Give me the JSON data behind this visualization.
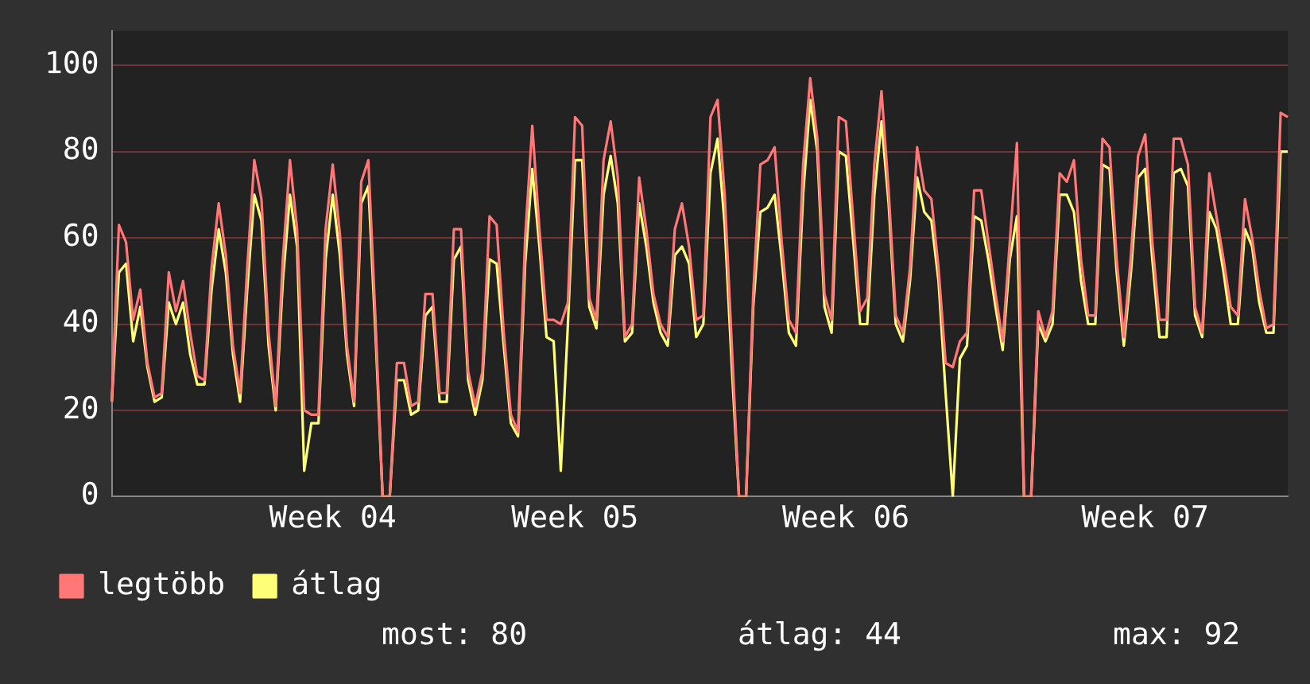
{
  "chart_data": {
    "type": "line",
    "categories": [
      null,
      null,
      null,
      null,
      null,
      null,
      null,
      null,
      null,
      null,
      null,
      null,
      null,
      null,
      null,
      null,
      null,
      null,
      null,
      null,
      null,
      null,
      null,
      null,
      null,
      null,
      null,
      null,
      null,
      null,
      null,
      "Week 04",
      null,
      null,
      null,
      null,
      null,
      null,
      null,
      null,
      null,
      null,
      null,
      null,
      null,
      null,
      null,
      null,
      null,
      null,
      null,
      null,
      null,
      null,
      null,
      null,
      null,
      null,
      null,
      null,
      null,
      null,
      null,
      null,
      null,
      "Week 05",
      null,
      null,
      null,
      null,
      null,
      null,
      null,
      null,
      null,
      null,
      null,
      null,
      null,
      null,
      null,
      null,
      null,
      null,
      null,
      null,
      null,
      null,
      null,
      null,
      null,
      null,
      null,
      null,
      null,
      null,
      null,
      null,
      null,
      null,
      null,
      null,
      null,
      "Week 06",
      null,
      null,
      null,
      null,
      null,
      null,
      null,
      null,
      null,
      null,
      null,
      null,
      null,
      null,
      null,
      null,
      null,
      null,
      null,
      null,
      null,
      null,
      null,
      null,
      null,
      null,
      null,
      null,
      null,
      null,
      null,
      null,
      null,
      null,
      null,
      null,
      null,
      null,
      null,
      null,
      null,
      "Week 07",
      null,
      null,
      null,
      null,
      null,
      null,
      null,
      null,
      null,
      null,
      null,
      null,
      null,
      null,
      null,
      null,
      null,
      null,
      null,
      null
    ],
    "series": [
      {
        "name": "legtöbb",
        "color": "#ff7777",
        "values": [
          22,
          63,
          59,
          41,
          48,
          31,
          23,
          24,
          52,
          43,
          50,
          38,
          28,
          27,
          53,
          68,
          56,
          35,
          24,
          53,
          78,
          69,
          38,
          21,
          55,
          78,
          62,
          20,
          19,
          19,
          62,
          77,
          61,
          35,
          22,
          73,
          78,
          41,
          0,
          0,
          31,
          31,
          21,
          22,
          47,
          47,
          24,
          24,
          62,
          62,
          29,
          21,
          29,
          65,
          63,
          38,
          19,
          15,
          60,
          86,
          62,
          41,
          41,
          40,
          45,
          88,
          86,
          46,
          41,
          78,
          87,
          74,
          37,
          40,
          74,
          62,
          47,
          40,
          37,
          62,
          68,
          58,
          41,
          42,
          88,
          92,
          70,
          35,
          0,
          0,
          47,
          77,
          78,
          81,
          59,
          41,
          38,
          77,
          97,
          83,
          47,
          41,
          88,
          87,
          65,
          43,
          46,
          77,
          94,
          71,
          42,
          38,
          53,
          81,
          71,
          69,
          53,
          31,
          30,
          36,
          38,
          71,
          71,
          59,
          47,
          36,
          59,
          82,
          0,
          0,
          43,
          37,
          43,
          75,
          73,
          78,
          55,
          42,
          42,
          83,
          81,
          55,
          37,
          56,
          79,
          84,
          59,
          41,
          41,
          83,
          83,
          77,
          44,
          38,
          75,
          65,
          55,
          44,
          42,
          69,
          60,
          48,
          39,
          40,
          89,
          88
        ]
      },
      {
        "name": "átlag",
        "color": "#ffff77",
        "values": [
          22,
          52,
          54,
          36,
          44,
          30,
          22,
          23,
          45,
          40,
          45,
          33,
          26,
          26,
          48,
          62,
          52,
          33,
          22,
          48,
          70,
          64,
          35,
          20,
          50,
          70,
          58,
          6,
          17,
          17,
          55,
          70,
          56,
          33,
          21,
          68,
          72,
          38,
          0,
          0,
          27,
          27,
          19,
          20,
          42,
          44,
          22,
          22,
          55,
          58,
          27,
          19,
          27,
          55,
          54,
          35,
          17,
          14,
          54,
          76,
          58,
          37,
          36,
          6,
          40,
          78,
          78,
          44,
          39,
          70,
          79,
          68,
          36,
          38,
          68,
          58,
          45,
          38,
          35,
          56,
          58,
          54,
          37,
          40,
          75,
          83,
          63,
          30,
          0,
          0,
          44,
          66,
          67,
          70,
          55,
          38,
          35,
          70,
          92,
          80,
          44,
          38,
          80,
          79,
          60,
          40,
          40,
          70,
          87,
          68,
          40,
          36,
          50,
          74,
          66,
          64,
          50,
          24,
          0,
          32,
          35,
          65,
          64,
          55,
          44,
          34,
          55,
          65,
          0,
          0,
          40,
          36,
          40,
          70,
          70,
          66,
          50,
          40,
          40,
          77,
          76,
          52,
          35,
          52,
          74,
          76,
          55,
          37,
          37,
          75,
          76,
          72,
          42,
          37,
          66,
          62,
          52,
          40,
          40,
          62,
          58,
          45,
          38,
          38,
          80,
          80
        ]
      }
    ],
    "ylim": [
      0,
      108
    ],
    "yticks": [
      0,
      20,
      40,
      60,
      80,
      100
    ],
    "grid": "y",
    "legend": "bottom",
    "marker": "none",
    "line_style": "solid",
    "annotations": [
      "most: 80",
      "átlag: 44",
      "max: 92"
    ]
  }
}
